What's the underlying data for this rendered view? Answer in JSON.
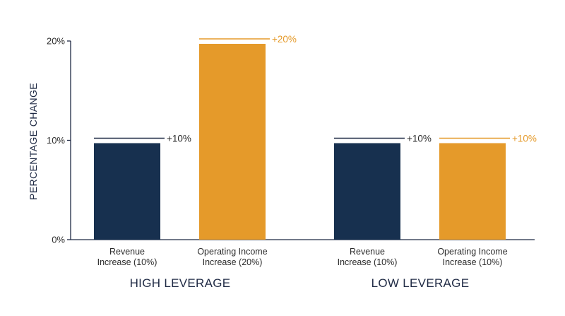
{
  "colors": {
    "navy": "#17304f",
    "orange": "#e59a2a",
    "axis": "#1f2a44",
    "text": "#2b2b2b"
  },
  "chart_data": {
    "type": "bar",
    "ylabel": "PERCENTAGE CHANGE",
    "xlabel": "",
    "ylim": [
      0,
      20
    ],
    "yticks": [
      {
        "value": 0,
        "label": "0%"
      },
      {
        "value": 10,
        "label": "10%"
      },
      {
        "value": 20,
        "label": "20%"
      }
    ],
    "grid": false,
    "groups": [
      {
        "label": "HIGH LEVERAGE",
        "bars": [
          {
            "line1": "Revenue",
            "line2": "Increase (10%)",
            "value": 10,
            "label": "+10%",
            "color": "navy"
          },
          {
            "line1": "Operating Income",
            "line2": "Increase (20%)",
            "value": 20,
            "label": "+20%",
            "color": "orange"
          }
        ]
      },
      {
        "label": "LOW LEVERAGE",
        "bars": [
          {
            "line1": "Revenue",
            "line2": "Increase (10%)",
            "value": 10,
            "label": "+10%",
            "color": "navy"
          },
          {
            "line1": "Operating Income",
            "line2": "Increase (10%)",
            "value": 10,
            "label": "+10%",
            "color": "orange"
          }
        ]
      }
    ]
  }
}
